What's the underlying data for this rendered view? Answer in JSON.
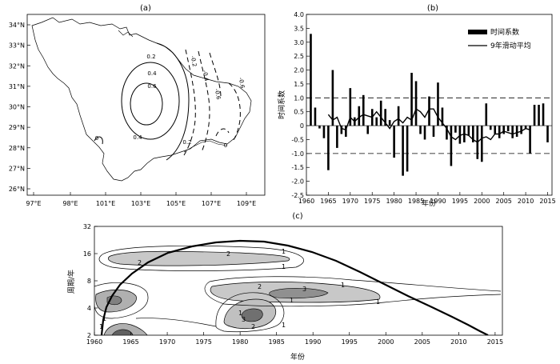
{
  "chart_data": [
    {
      "id": "a",
      "panel_label": "(a)",
      "type": "map_contour",
      "lat_ticks": [
        "26°N",
        "27°N",
        "28°N",
        "29°N",
        "30°N",
        "31°N",
        "32°N",
        "33°N",
        "34°N"
      ],
      "lon_ticks": [
        "97°E",
        "98°E",
        "101°E",
        "103°E",
        "105°E",
        "107°E",
        "109°E"
      ],
      "contour_labels": [
        "0.2",
        "0.4",
        "0.6",
        "0.4",
        "0",
        "0.2",
        "-0.2",
        "-0.4",
        "0",
        "-0.6",
        "-0.6"
      ]
    },
    {
      "id": "b",
      "panel_label": "(b)",
      "type": "bar",
      "xlabel": "年份",
      "ylabel": "时间系数",
      "xlim": [
        1960,
        2016
      ],
      "ylim": [
        -2.5,
        4.0
      ],
      "x_ticks": [
        1960,
        1965,
        1970,
        1975,
        1980,
        1985,
        1990,
        1995,
        2000,
        2005,
        2010,
        2015
      ],
      "y_ticks": [
        "-2.5",
        "-2.0",
        "-1.5",
        "-1.0",
        "-0.5",
        "0",
        "0.5",
        "1.0",
        "1.5",
        "2.0",
        "2.5",
        "3.0",
        "3.5",
        "4.0"
      ],
      "reference_lines": [
        1.0,
        -1.0
      ],
      "legend": {
        "position": "top-right",
        "bar_label": "时间系数",
        "line_label": "9年滑动平均"
      },
      "x": [
        1961,
        1962,
        1963,
        1964,
        1965,
        1966,
        1967,
        1968,
        1969,
        1970,
        1971,
        1972,
        1973,
        1974,
        1975,
        1976,
        1977,
        1978,
        1979,
        1980,
        1981,
        1982,
        1983,
        1984,
        1985,
        1986,
        1987,
        1988,
        1989,
        1990,
        1991,
        1992,
        1993,
        1994,
        1995,
        1996,
        1997,
        1998,
        1999,
        2000,
        2001,
        2002,
        2003,
        2004,
        2005,
        2006,
        2007,
        2008,
        2009,
        2010,
        2011,
        2012,
        2013,
        2014,
        2015
      ],
      "values": [
        3.3,
        0.65,
        -0.1,
        -0.45,
        -1.6,
        2.0,
        -0.8,
        -0.3,
        -0.4,
        1.35,
        0.3,
        0.7,
        1.1,
        -0.3,
        0.6,
        0.3,
        0.9,
        0.6,
        0.2,
        -1.15,
        0.7,
        -1.8,
        -1.65,
        1.9,
        1.6,
        -0.3,
        -0.5,
        1.05,
        -0.4,
        1.55,
        0.65,
        -0.5,
        -1.45,
        -0.25,
        -0.65,
        -0.6,
        -0.35,
        -0.6,
        -1.2,
        -1.3,
        0.8,
        -0.15,
        -0.3,
        -0.45,
        -0.3,
        -0.2,
        -0.45,
        -0.4,
        -0.3,
        -0.1,
        -1.0,
        0.75,
        0.75,
        0.8,
        -0.6
      ],
      "moving_average": {
        "x": [
          1965,
          1966,
          1967,
          1968,
          1969,
          1970,
          1971,
          1972,
          1973,
          1974,
          1975,
          1976,
          1977,
          1978,
          1979,
          1980,
          1981,
          1982,
          1983,
          1984,
          1985,
          1986,
          1987,
          1988,
          1989,
          1990,
          1991,
          1992,
          1993,
          1994,
          1995,
          1996,
          1997,
          1998,
          1999,
          2000,
          2001,
          2002,
          2003,
          2004,
          2005,
          2006,
          2007,
          2008,
          2009,
          2010,
          2011
        ],
        "values": [
          0.4,
          0.2,
          0.3,
          -0.1,
          -0.15,
          0.3,
          0.15,
          0.3,
          0.4,
          0.35,
          0.3,
          0.5,
          0.3,
          0.1,
          -0.1,
          0.15,
          0.25,
          0.1,
          0.3,
          0.2,
          0.6,
          0.5,
          0.3,
          0.6,
          0.6,
          0.3,
          0.1,
          -0.1,
          -0.4,
          -0.5,
          -0.35,
          -0.3,
          -0.35,
          -0.5,
          -0.6,
          -0.45,
          -0.4,
          -0.5,
          -0.3,
          -0.3,
          -0.2,
          -0.25,
          -0.3,
          -0.25,
          -0.2,
          -0.1,
          -0.15
        ]
      }
    },
    {
      "id": "c",
      "panel_label": "(c)",
      "type": "heatmap",
      "xlabel": "年份",
      "ylabel": "周期/年",
      "x_ticks": [
        1960,
        1965,
        1970,
        1975,
        1980,
        1985,
        1990,
        1995,
        2000,
        2005,
        2010,
        2015
      ],
      "y_ticks": [
        2,
        4,
        8,
        16,
        32
      ],
      "y_scale": "log2",
      "contour_labels": [
        "2",
        "1",
        "1",
        "2",
        "1",
        "1",
        "2",
        "3",
        "1",
        "1",
        "1",
        "1",
        "3",
        "2",
        "1"
      ]
    }
  ]
}
